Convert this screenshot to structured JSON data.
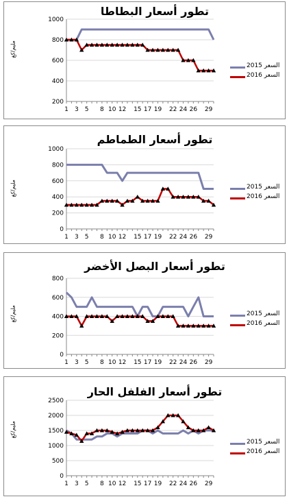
{
  "colors": {
    "s2015": "#7b7fad",
    "s2016": "#c00000",
    "grid": "#d9d9d9",
    "axis": "#888888"
  },
  "chart_data": [
    {
      "type": "line",
      "title": "تطور أسعار البطاطا",
      "ylabel": "مليم/كغ",
      "ylim": [
        200,
        1000
      ],
      "yticks": [
        200,
        400,
        600,
        800,
        1000
      ],
      "x": [
        1,
        2,
        3,
        4,
        5,
        6,
        7,
        8,
        9,
        10,
        11,
        12,
        13,
        14,
        15,
        16,
        17,
        18,
        19,
        20,
        21,
        22,
        23,
        24,
        25,
        26,
        27,
        28,
        29,
        30
      ],
      "xticklabels": [
        "1",
        "3",
        "5",
        "8",
        "10",
        "12",
        "15",
        "17",
        "19",
        "22",
        "24",
        "26",
        "29"
      ],
      "xtickpos": [
        1,
        3,
        5,
        8,
        10,
        12,
        15,
        17,
        19,
        22,
        24,
        26,
        29
      ],
      "legend_labels": [
        "السعر 2015",
        "السعر 2016"
      ],
      "series": [
        {
          "key": "s2015",
          "values": [
            800,
            800,
            800,
            900,
            900,
            900,
            900,
            900,
            900,
            900,
            900,
            900,
            900,
            900,
            900,
            900,
            900,
            900,
            900,
            900,
            900,
            900,
            900,
            900,
            900,
            900,
            900,
            900,
            900,
            800
          ]
        },
        {
          "key": "s2016",
          "values": [
            800,
            800,
            800,
            700,
            750,
            750,
            750,
            750,
            750,
            750,
            750,
            750,
            750,
            750,
            750,
            750,
            700,
            700,
            700,
            700,
            700,
            700,
            700,
            600,
            600,
            600,
            500,
            500,
            500,
            500
          ]
        }
      ]
    },
    {
      "type": "line",
      "title": "تطور أسعار الطماطم",
      "ylabel": "مليم/كغ",
      "ylim": [
        0,
        1000
      ],
      "yticks": [
        0,
        200,
        400,
        600,
        800,
        1000
      ],
      "x": [
        1,
        2,
        3,
        4,
        5,
        6,
        7,
        8,
        9,
        10,
        11,
        12,
        13,
        14,
        15,
        16,
        17,
        18,
        19,
        20,
        21,
        22,
        23,
        24,
        25,
        26,
        27,
        28,
        29,
        30
      ],
      "xticklabels": [
        "1",
        "3",
        "5",
        "8",
        "10",
        "12",
        "15",
        "17",
        "19",
        "22",
        "24",
        "26",
        "29"
      ],
      "xtickpos": [
        1,
        3,
        5,
        8,
        10,
        12,
        15,
        17,
        19,
        22,
        24,
        26,
        29
      ],
      "legend_labels": [
        "السعر 2015",
        "السعر 2016"
      ],
      "series": [
        {
          "key": "s2015",
          "values": [
            800,
            800,
            800,
            800,
            800,
            800,
            800,
            800,
            700,
            700,
            700,
            600,
            700,
            700,
            700,
            700,
            700,
            700,
            700,
            700,
            700,
            700,
            700,
            700,
            700,
            700,
            700,
            500,
            500,
            500
          ]
        },
        {
          "key": "s2016",
          "values": [
            300,
            300,
            300,
            300,
            300,
            300,
            300,
            350,
            350,
            350,
            350,
            300,
            350,
            350,
            400,
            350,
            350,
            350,
            350,
            500,
            500,
            400,
            400,
            400,
            400,
            400,
            400,
            350,
            350,
            300
          ]
        }
      ]
    },
    {
      "type": "line",
      "title": "تطور أسعار البصل الأخضر",
      "ylabel": "مليم/كغ",
      "ylim": [
        0,
        800
      ],
      "yticks": [
        0,
        200,
        400,
        600,
        800
      ],
      "x": [
        1,
        2,
        3,
        4,
        5,
        6,
        7,
        8,
        9,
        10,
        11,
        12,
        13,
        14,
        15,
        16,
        17,
        18,
        19,
        20,
        21,
        22,
        23,
        24,
        25,
        26,
        27,
        28,
        29,
        30
      ],
      "xticklabels": [
        "1",
        "3",
        "5",
        "8",
        "10",
        "12",
        "15",
        "17",
        "19",
        "22",
        "24",
        "26",
        "29"
      ],
      "xtickpos": [
        1,
        3,
        5,
        8,
        10,
        12,
        15,
        17,
        19,
        22,
        24,
        26,
        29
      ],
      "legend_labels": [
        "السعر 2015",
        "السعر 2016"
      ],
      "series": [
        {
          "key": "s2015",
          "values": [
            650,
            600,
            500,
            500,
            500,
            600,
            500,
            500,
            500,
            500,
            500,
            500,
            500,
            500,
            400,
            500,
            500,
            400,
            400,
            500,
            500,
            500,
            500,
            500,
            400,
            500,
            600,
            400,
            400,
            400
          ]
        },
        {
          "key": "s2016",
          "values": [
            400,
            400,
            400,
            300,
            400,
            400,
            400,
            400,
            400,
            350,
            400,
            400,
            400,
            400,
            400,
            400,
            350,
            350,
            400,
            400,
            400,
            400,
            300,
            300,
            300,
            300,
            300,
            300,
            300,
            300
          ]
        }
      ]
    },
    {
      "type": "line",
      "title": "تطور أسعار الفلفل الحار",
      "ylabel": "مليم/كغ",
      "ylim": [
        0,
        2500
      ],
      "yticks": [
        0,
        500,
        1000,
        1500,
        2000,
        2500
      ],
      "x": [
        1,
        2,
        3,
        4,
        5,
        6,
        7,
        8,
        9,
        10,
        11,
        12,
        13,
        14,
        15,
        16,
        17,
        18,
        19,
        20,
        21,
        22,
        23,
        24,
        25,
        26,
        27,
        28,
        29,
        30
      ],
      "xticklabels": [
        "1",
        "3",
        "5",
        "8",
        "10",
        "12",
        "15",
        "17",
        "19",
        "22",
        "24",
        "26",
        "29"
      ],
      "xtickpos": [
        1,
        3,
        5,
        8,
        10,
        12,
        15,
        17,
        19,
        22,
        24,
        26,
        29
      ],
      "legend_labels": [
        "السعر 2015",
        "السعر 2016"
      ],
      "series": [
        {
          "key": "s2015",
          "values": [
            1500,
            1400,
            1200,
            1200,
            1200,
            1200,
            1300,
            1300,
            1400,
            1400,
            1300,
            1400,
            1400,
            1400,
            1400,
            1500,
            1500,
            1400,
            1500,
            1400,
            1400,
            1400,
            1400,
            1500,
            1400,
            1500,
            1400,
            1500,
            1500,
            1500
          ]
        },
        {
          "key": "s2016",
          "values": [
            1450,
            1400,
            1350,
            1150,
            1400,
            1400,
            1500,
            1500,
            1500,
            1450,
            1400,
            1450,
            1500,
            1500,
            1500,
            1500,
            1500,
            1500,
            1600,
            1800,
            2000,
            2000,
            2000,
            1800,
            1600,
            1500,
            1500,
            1500,
            1600,
            1500
          ]
        }
      ]
    }
  ]
}
